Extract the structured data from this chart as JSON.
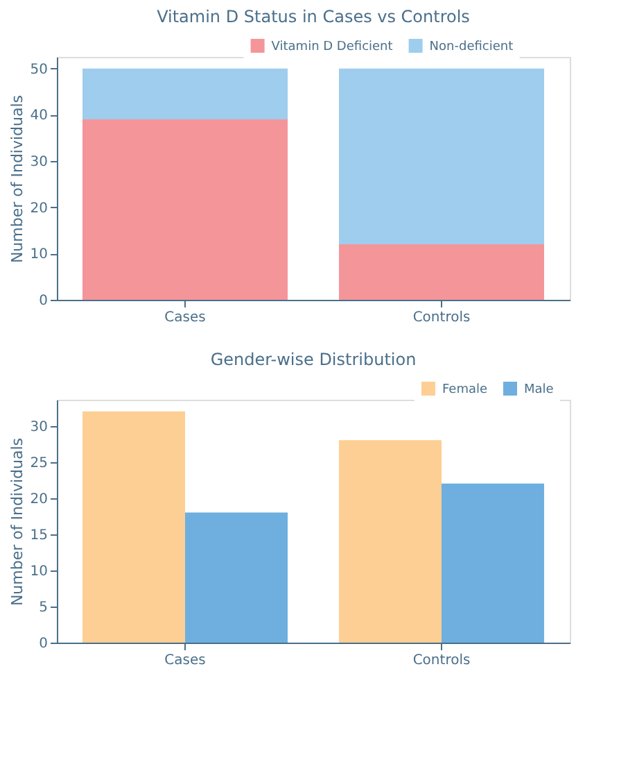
{
  "chart_data": [
    {
      "type": "bar",
      "title": "Vitamin D Status in Cases vs Controls",
      "ylabel": "Number of Individuals",
      "categories": [
        "Cases",
        "Controls"
      ],
      "stacked": true,
      "series": [
        {
          "name": "Vitamin D Deficient",
          "color": "#f4959a",
          "values": [
            39,
            12
          ]
        },
        {
          "name": "Non-deficient",
          "color": "#9ecdee",
          "values": [
            11,
            38
          ]
        }
      ],
      "ylim": [
        0,
        52.5
      ],
      "yticks": [
        0,
        10,
        20,
        30,
        40,
        50
      ],
      "grid": false,
      "legend": "top right"
    },
    {
      "type": "bar",
      "title": "Gender-wise Distribution",
      "ylabel": "Number of Individuals",
      "categories": [
        "Cases",
        "Controls"
      ],
      "series": [
        {
          "name": "Female",
          "color": "#fdcf94",
          "values": [
            32,
            28
          ]
        },
        {
          "name": "Male",
          "color": "#6eafdf",
          "values": [
            18,
            22
          ]
        }
      ],
      "ylim": [
        0,
        33.6
      ],
      "yticks": [
        0,
        5,
        10,
        15,
        20,
        25,
        30
      ],
      "grid": false,
      "legend": "top right"
    }
  ]
}
